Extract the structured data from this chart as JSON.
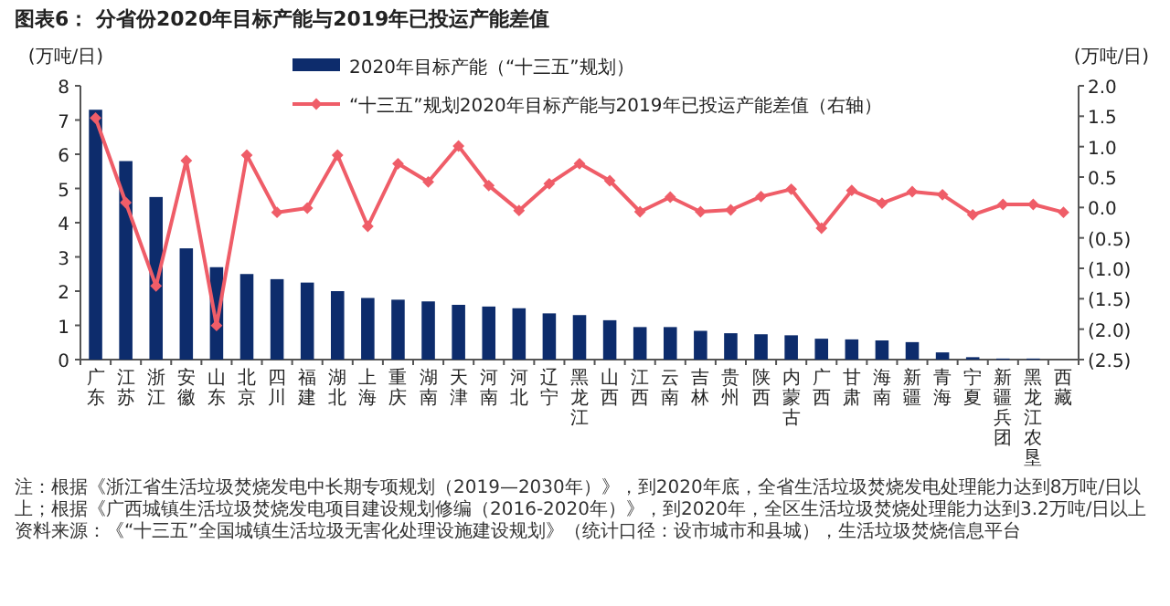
{
  "chart_data": {
    "type": "bar",
    "title": "图表6：  分省份2020年目标产能与2019年已投运产能差值",
    "ylabel": "(万吨/日)",
    "y2label": "(万吨/日)",
    "categories": [
      "广东",
      "江苏",
      "浙江",
      "安徽",
      "山东",
      "北京",
      "四川",
      "福建",
      "湖北",
      "上海",
      "重庆",
      "湖南",
      "天津",
      "河南",
      "河北",
      "辽宁",
      "黑龙江",
      "山西",
      "江西",
      "云南",
      "吉林",
      "贵州",
      "陕西",
      "内蒙古",
      "广西",
      "甘肃",
      "海南",
      "新疆",
      "青海",
      "宁夏",
      "新疆兵团",
      "黑龙江农垦",
      "西藏"
    ],
    "series": [
      {
        "name": "2020年目标产能（“十三五”规划）",
        "color": "#0d2c6c",
        "values": [
          7.3,
          5.8,
          4.75,
          3.25,
          2.7,
          2.5,
          2.35,
          2.25,
          2.0,
          1.8,
          1.75,
          1.7,
          1.6,
          1.55,
          1.5,
          1.35,
          1.3,
          1.15,
          0.95,
          0.95,
          0.84,
          0.77,
          0.74,
          0.71,
          0.61,
          0.59,
          0.56,
          0.51,
          0.21,
          0.07,
          0.03,
          0.03,
          0
        ]
      },
      {
        "name": "“十三五”规划2020年目标产能与2019年已投运产能差值（右轴）",
        "type": "line",
        "axis": "y2",
        "color": "#ef5d68",
        "marker": "diamond",
        "values": [
          1.47,
          0.08,
          -1.29,
          0.77,
          -1.94,
          0.86,
          -0.08,
          -0.01,
          0.86,
          -0.31,
          0.72,
          0.42,
          1.01,
          0.36,
          -0.05,
          0.39,
          0.72,
          0.44,
          -0.07,
          0.17,
          -0.07,
          -0.04,
          0.18,
          0.3,
          -0.34,
          0.28,
          0.07,
          0.26,
          0.21,
          -0.12,
          0.05,
          0.05,
          -0.08
        ]
      }
    ],
    "ylim": [
      0,
      8
    ],
    "yticks": [
      0,
      1,
      2,
      3,
      4,
      5,
      6,
      7,
      8
    ],
    "y2lim": [
      -2.5,
      2.0
    ],
    "y2ticks": [
      {
        "value": 2.0,
        "label": "2.0"
      },
      {
        "value": 1.5,
        "label": "1.5"
      },
      {
        "value": 1.0,
        "label": "1.0"
      },
      {
        "value": 0.5,
        "label": "0.5"
      },
      {
        "value": 0,
        "label": "0.0"
      },
      {
        "value": -0.5,
        "label": "(0.5)"
      },
      {
        "value": -1.0,
        "label": "(1.0)"
      },
      {
        "value": -1.5,
        "label": "(1.5)"
      },
      {
        "value": -2.0,
        "label": "(2.0)"
      },
      {
        "value": -2.5,
        "label": "(2.5)"
      }
    ],
    "legend": "top",
    "grid": false,
    "annotations": [
      "注：根据《浙江省生活垃圾焚烧发电中长期专项规划（2019—2030年）》，到2020年底，全省生活垃圾焚烧发电处理能力达到8万吨/日以上；根据《广西城镇生活垃圾焚烧发电项目建设规划修编（2016-2020年）》，到2020年，全区生活垃圾焚烧处理能力达到3.2万吨/日以上",
      "资料来源：《“十三五”全国城镇生活垃圾无害化处理设施建设规划》（统计口径：设市城市和县城），生活垃圾焚烧信息平台"
    ]
  }
}
